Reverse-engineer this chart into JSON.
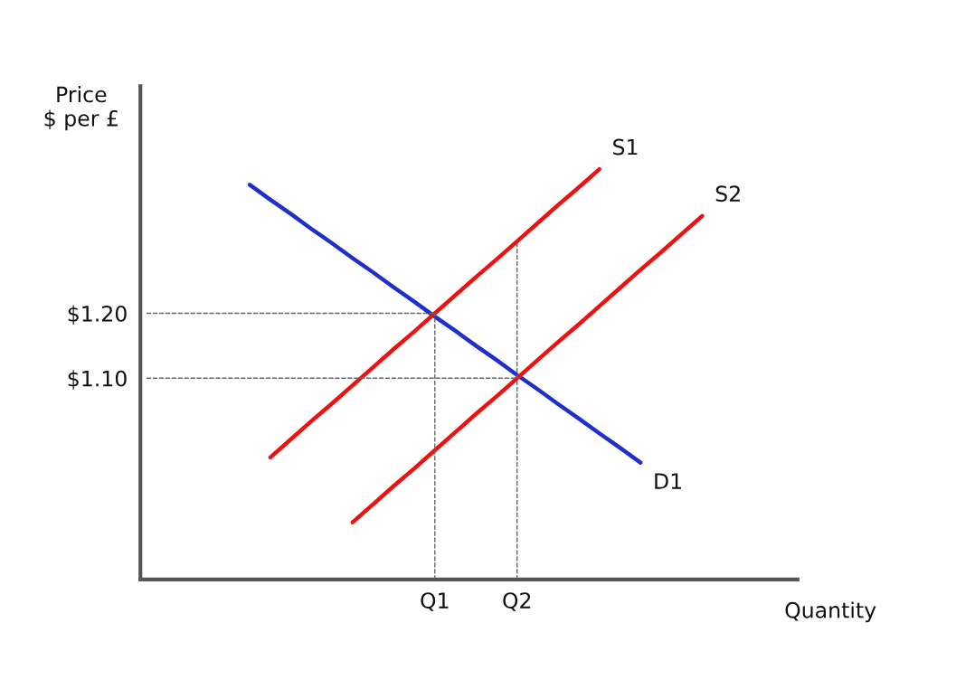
{
  "chart_data": {
    "type": "line",
    "xlabel": "Quantity",
    "ylabel": "Price\n$ per £",
    "categories": [
      null,
      null,
      null,
      null,
      null,
      null,
      null,
      null,
      null,
      null,
      null,
      null,
      null,
      null,
      "Q1",
      null,
      null,
      null,
      "Q2",
      null,
      null,
      null,
      null,
      null,
      null,
      null,
      null,
      null,
      null,
      null,
      null,
      null
    ],
    "ylim": [
      0.79,
      1.55
    ],
    "yticks": [
      {
        "value": 1.1,
        "label": "$1.10"
      },
      {
        "value": 1.2,
        "label": "$1.20"
      }
    ],
    "grid": false,
    "legend": false,
    "marker": "none",
    "series": [
      {
        "name": "D1",
        "color": "#1f2fc8",
        "line_style": "solid",
        "values": [
          null,
          null,
          null,
          null,
          null,
          1.398,
          1.375,
          1.353,
          1.33,
          1.308,
          1.285,
          1.263,
          1.24,
          1.218,
          1.195,
          1.173,
          1.15,
          1.128,
          1.105,
          1.083,
          1.06,
          1.038,
          1.015,
          0.993,
          0.97,
          null,
          null,
          null,
          null,
          null,
          null,
          null
        ]
      },
      {
        "name": "S1",
        "color": "#f01010",
        "line_style": "solid",
        "values": [
          null,
          null,
          null,
          null,
          null,
          null,
          0.978,
          1.006,
          1.034,
          1.061,
          1.089,
          1.117,
          1.145,
          1.172,
          1.2,
          1.228,
          1.256,
          1.283,
          1.311,
          1.339,
          1.367,
          1.394,
          1.422,
          null,
          null,
          null,
          null,
          null,
          null,
          null,
          null,
          null
        ]
      },
      {
        "name": "S2",
        "color": "#f01010",
        "line_style": "solid",
        "values": [
          null,
          null,
          null,
          null,
          null,
          null,
          null,
          null,
          null,
          null,
          0.878,
          0.906,
          0.934,
          0.961,
          0.989,
          1.017,
          1.045,
          1.072,
          1.1,
          1.128,
          1.156,
          1.183,
          1.211,
          1.239,
          1.267,
          1.294,
          1.322,
          1.35,
          null,
          null,
          null,
          null
        ]
      },
      {
        "color": "#666666",
        "line_style": "dashed",
        "values": [
          1.2,
          1.2,
          1.2,
          1.2,
          1.2,
          1.2,
          1.2,
          1.2,
          1.2,
          1.2,
          1.2,
          1.2,
          1.2,
          1.2,
          1.2,
          null,
          null,
          null,
          null,
          null,
          null,
          null,
          null,
          null,
          null,
          null,
          null,
          null,
          null,
          null,
          null,
          null
        ]
      },
      {
        "color": "#666666",
        "line_style": "dashed",
        "values": [
          1.1,
          1.1,
          1.1,
          1.1,
          1.1,
          1.1,
          1.1,
          1.1,
          1.1,
          1.1,
          1.1,
          1.1,
          1.1,
          1.1,
          1.1,
          1.1,
          1.1,
          1.1,
          1.1,
          null,
          null,
          null,
          null,
          null,
          null,
          null,
          null,
          null,
          null,
          null,
          null,
          null
        ]
      },
      {
        "color": "#666666",
        "line_style": "dashed",
        "x": [
          "Q1",
          "Q1"
        ],
        "values": [
          0.79,
          1.2
        ]
      },
      {
        "color": "#666666",
        "line_style": "dashed",
        "x": [
          "Q2",
          "Q2"
        ],
        "values": [
          0.79,
          1.311
        ]
      }
    ]
  }
}
